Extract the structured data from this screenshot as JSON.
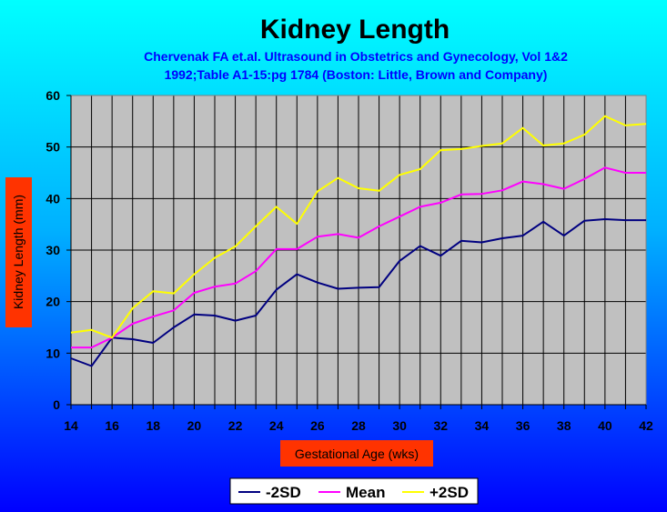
{
  "chart_data": {
    "type": "line",
    "title": "Kidney Length",
    "subtitle_line1": "Chervenak FA et.al. Ultrasound in Obstetrics and Gynecology, Vol 1&2",
    "subtitle_line2": "1992;Table A1-15:pg 1784 (Boston: Little, Brown and Company)",
    "xlabel": "Gestational Age (wks)",
    "ylabel": "Kidney Length (mm)",
    "xlim": [
      14,
      42
    ],
    "ylim": [
      0,
      60
    ],
    "x_ticks": [
      "14",
      "16",
      "18",
      "20",
      "22",
      "24",
      "26",
      "28",
      "30",
      "32",
      "34",
      "36",
      "38",
      "40",
      "42"
    ],
    "y_ticks": [
      "0",
      "10",
      "20",
      "30",
      "40",
      "50",
      "60"
    ],
    "grid": true,
    "legend_position": "bottom-center",
    "x": [
      14,
      15,
      16,
      17,
      18,
      19,
      20,
      21,
      22,
      23,
      24,
      25,
      26,
      27,
      28,
      29,
      30,
      31,
      32,
      33,
      34,
      35,
      36,
      37,
      38,
      39,
      40,
      41,
      42
    ],
    "series": [
      {
        "name": "-2SD",
        "color": "#000080",
        "values": [
          9,
          7.5,
          13,
          12.7,
          12,
          15,
          17.5,
          17.3,
          16.3,
          17.3,
          22.3,
          25.3,
          23.7,
          22.5,
          22.7,
          22.8,
          27.9,
          30.8,
          28.9,
          31.8,
          31.5,
          32.3,
          32.8,
          35.5,
          32.8,
          35.7,
          36,
          35.8,
          35.8
        ]
      },
      {
        "name": "Mean",
        "color": "#FF00FF",
        "values": [
          11.1,
          11.1,
          13,
          15.7,
          17.1,
          18.3,
          21.7,
          22.9,
          23.5,
          25.9,
          30.2,
          30.2,
          32.6,
          33.1,
          32.4,
          34.6,
          36.5,
          38.4,
          39.2,
          40.8,
          40.9,
          41.6,
          43.3,
          42.8,
          41.9,
          43.8,
          46,
          45,
          45
        ]
      },
      {
        "name": "+2SD",
        "color": "#FFFF00",
        "values": [
          14,
          14.5,
          13,
          18.7,
          22,
          21.6,
          25.3,
          28.5,
          30.7,
          34.6,
          38.4,
          35.1,
          41.4,
          44,
          42,
          41.5,
          44.6,
          45.7,
          49.4,
          49.6,
          50.2,
          50.7,
          53.7,
          50.3,
          50.7,
          52.4,
          56,
          54.2,
          54.5
        ]
      }
    ]
  },
  "colors": {
    "title": "#000000",
    "subtitle": "#0000FF",
    "plot_bg": "#C0C0C0",
    "axis_label_bg": "#FF3300",
    "tick_text": "#000000"
  }
}
